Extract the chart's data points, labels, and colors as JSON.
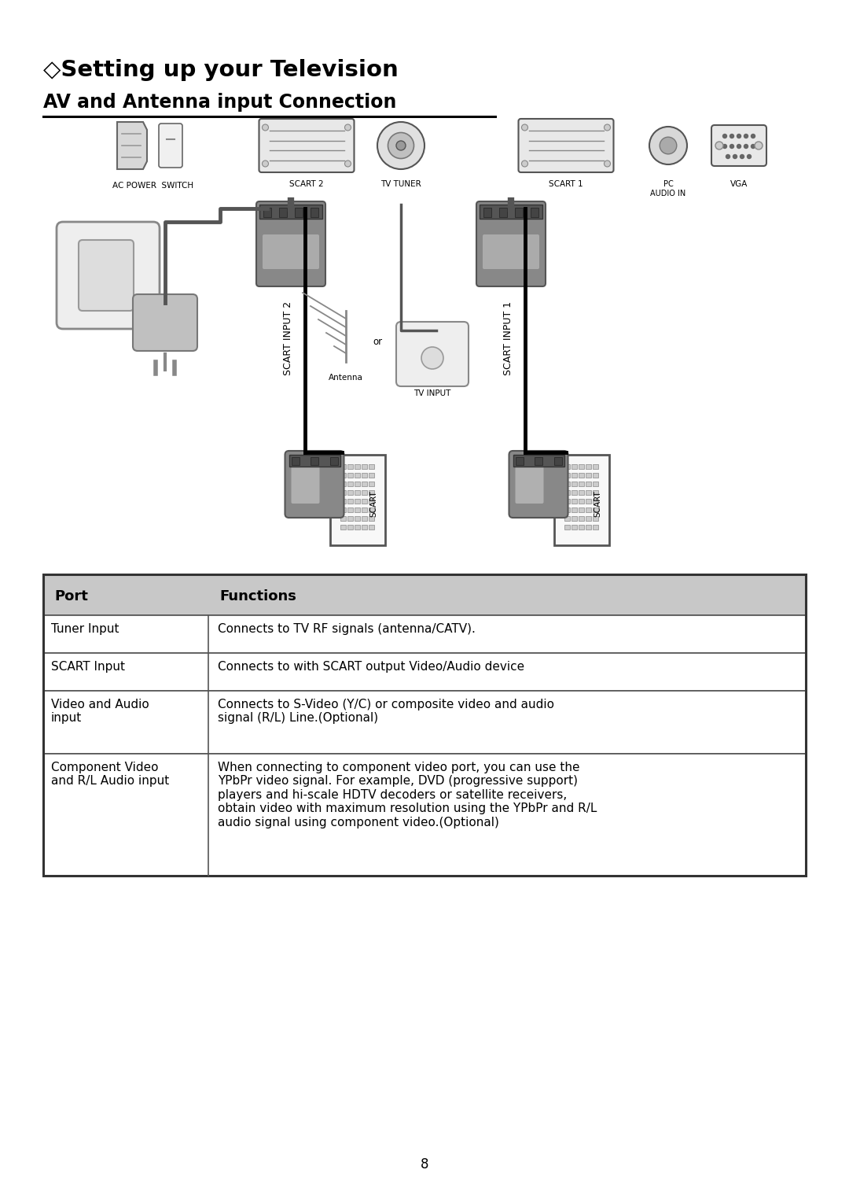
{
  "title": "◇Setting up your Television",
  "subtitle": "AV and Antenna input Connection",
  "bg_color": "#ffffff",
  "title_fontsize": 20,
  "subtitle_fontsize": 16,
  "table_header": [
    "Port",
    "Functions"
  ],
  "table_rows": [
    [
      "Tuner Input",
      "Connects to TV RF signals (antenna/CATV)."
    ],
    [
      "SCART Input",
      "Connects to with SCART output Video/Audio device"
    ],
    [
      "Video and Audio\ninput",
      "Connects to S-Video (Y/C) or composite video and audio\nsignal (R/L) Line.(Optional)"
    ],
    [
      "Component Video\nand R/L Audio input",
      "When connecting to component video port, you can use the\nYPbPr video signal. For example, DVD (progressive support)\nplayers and hi-scale HDTV decoders or satellite receivers,\nobtain video with maximum resolution using the YPbPr and R/L\naudio signal using component video.(Optional)"
    ]
  ],
  "page_number": "8",
  "diagram_labels": {
    "ac_power_switch": "AC POWER  SWITCH",
    "scart2": "SCART 2",
    "tv_tuner": "TV TUNER",
    "scart1": "SCART 1",
    "pc_audio": "PC\nAUDIO IN",
    "vga": "VGA",
    "scart_input2": "SCART INPUT 2",
    "scart_input1": "SCART INPUT 1",
    "antenna": "Antenna",
    "or": "or",
    "tv_input": "TV INPUT",
    "scart_label": "SCART"
  }
}
